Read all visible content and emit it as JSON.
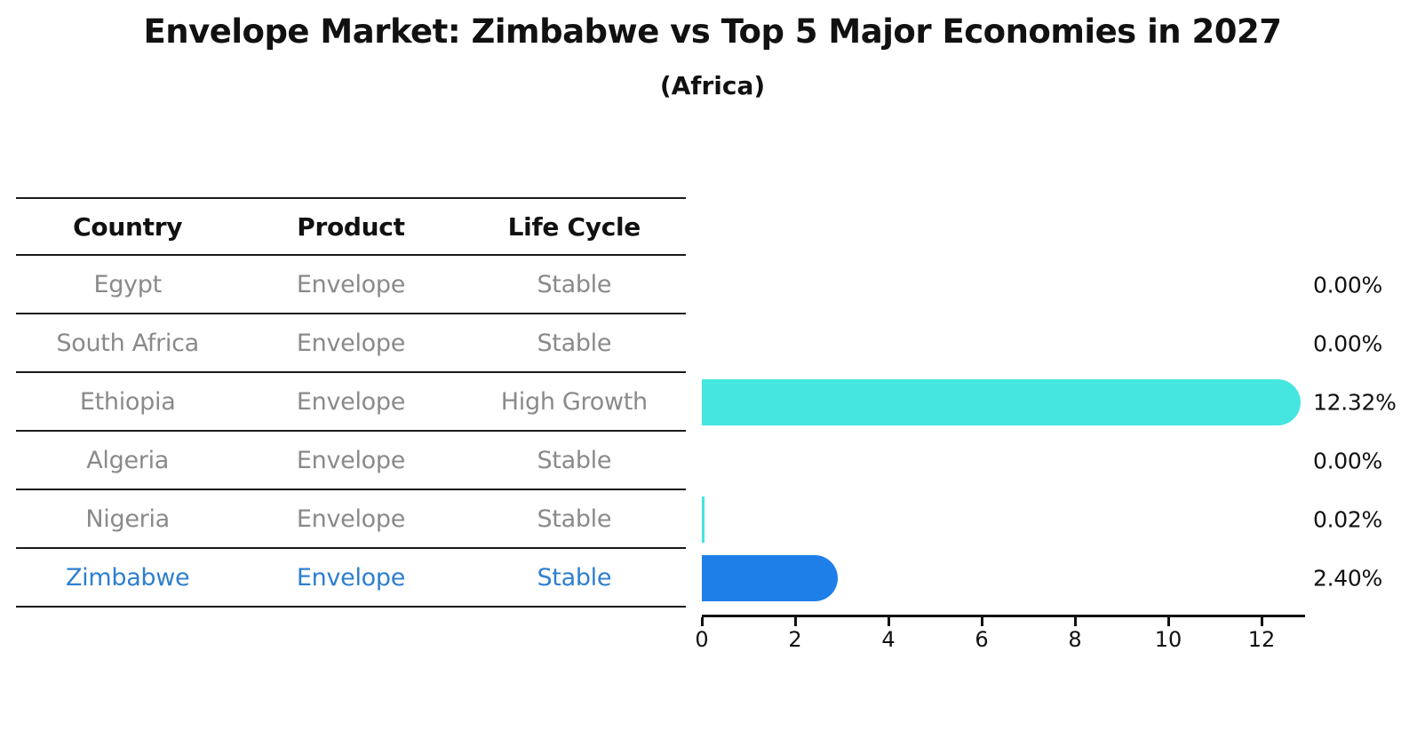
{
  "header": {
    "title": "Envelope Market: Zimbabwe vs Top 5 Major Economies in 2027",
    "subtitle": "(Africa)"
  },
  "table": {
    "columns": [
      "Country",
      "Product",
      "Life Cycle"
    ],
    "rows": [
      {
        "country": "Egypt",
        "product": "Envelope",
        "life_cycle": "Stable"
      },
      {
        "country": "South Africa",
        "product": "Envelope",
        "life_cycle": "Stable"
      },
      {
        "country": "Ethiopia",
        "product": "Envelope",
        "life_cycle": "High Growth"
      },
      {
        "country": "Algeria",
        "product": "Envelope",
        "life_cycle": "Stable"
      },
      {
        "country": "Nigeria",
        "product": "Envelope",
        "life_cycle": "Stable"
      },
      {
        "country": "Zimbabwe",
        "product": "Envelope",
        "life_cycle": "Stable"
      }
    ]
  },
  "chart_data": {
    "type": "bar",
    "orientation": "horizontal",
    "title": "Envelope Market: Zimbabwe vs Top 5 Major Economies in 2027",
    "subtitle": "(Africa)",
    "categories": [
      "Egypt",
      "South Africa",
      "Ethiopia",
      "Algeria",
      "Nigeria",
      "Zimbabwe"
    ],
    "values": [
      0.0,
      0.0,
      12.32,
      0.0,
      0.02,
      2.4
    ],
    "value_labels": [
      "0.00%",
      "0.00%",
      "12.32%",
      "0.00%",
      "0.02%",
      "2.40%"
    ],
    "x_ticks": [
      "0",
      "2",
      "4",
      "6",
      "8",
      "10",
      "12"
    ],
    "x_tick_values": [
      0,
      2,
      4,
      6,
      8,
      10,
      12
    ],
    "xlim": [
      0,
      12.93
    ],
    "grid": false,
    "legend": "none",
    "highlight_index": 5,
    "colors": {
      "default_bar": "#45e6e0",
      "highlight_bar": "#1f7fe9",
      "highlight_text": "#2e7fd0",
      "row_text": "#8a8a8a",
      "axis": "#111111"
    }
  }
}
